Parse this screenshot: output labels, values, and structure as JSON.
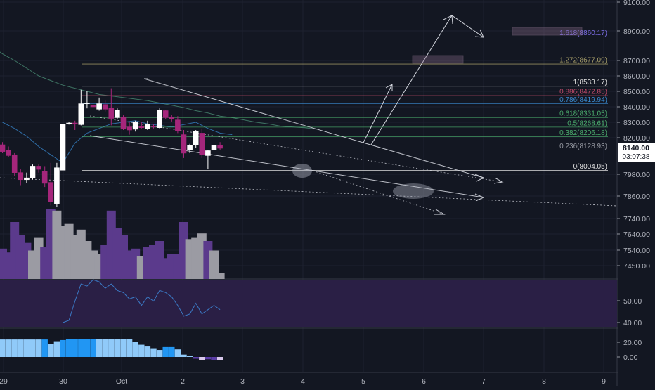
{
  "colors": {
    "background": "#131722",
    "grid": "#1e2230",
    "pane_separator": "#363a45",
    "axis_text": "#b2b5be",
    "candle_up": "#ffffff",
    "candle_down": "#a5267b",
    "wick": "#9aa0ad",
    "volume_up": "#9b9ba3",
    "volume_down": "#5b3a8c",
    "rsi_band": "#2a1f45",
    "rsi_line": "#3b7ac6",
    "hist_dark": "#2196f3",
    "hist_light": "#90caf9",
    "hist_neg_dark": "#5b3da8",
    "hist_neg_light": "#d8c8ec",
    "drawing": "#d1d4dc",
    "ma_green": "#3e7463",
    "ma_blue": "#2f6da6",
    "price_tag": "#ffffff"
  },
  "chart_data": [
    {
      "type": "candlestick",
      "title": "",
      "y_axis": {
        "ticks": [
          "9100.00",
          "8900.00",
          "8700.00",
          "8600.00",
          "8500.00",
          "8400.00",
          "8300.00",
          "8200.00",
          "7980.00",
          "7860.00",
          "7740.00",
          "7640.00",
          "7540.00",
          "7450.00"
        ]
      },
      "current_price": {
        "label": "8140.00",
        "countdown": "03:07:38",
        "value": 8140
      },
      "x_axis": {
        "ticks": [
          "29",
          "30",
          "Oct",
          "2",
          "3",
          "4",
          "5",
          "6",
          "7",
          "8",
          "9"
        ]
      },
      "candles": [
        {
          "o": 8160,
          "h": 8175,
          "l": 8110,
          "c": 8120
        },
        {
          "o": 8130,
          "h": 8150,
          "l": 8085,
          "c": 8095
        },
        {
          "o": 8100,
          "h": 8110,
          "l": 7970,
          "c": 7990
        },
        {
          "o": 7990,
          "h": 8010,
          "l": 7920,
          "c": 7950
        },
        {
          "o": 7950,
          "h": 7990,
          "l": 7930,
          "c": 7960
        },
        {
          "o": 7960,
          "h": 8040,
          "l": 7950,
          "c": 8030
        },
        {
          "o": 8030,
          "h": 8040,
          "l": 7990,
          "c": 8010
        },
        {
          "o": 8000,
          "h": 8030,
          "l": 7910,
          "c": 7930
        },
        {
          "o": 7935,
          "h": 8050,
          "l": 7810,
          "c": 7830
        },
        {
          "o": 7820,
          "h": 8050,
          "l": 7800,
          "c": 8020
        },
        {
          "o": 8005,
          "h": 8300,
          "l": 7990,
          "c": 8285
        },
        {
          "o": 8290,
          "h": 8300,
          "l": 8285,
          "c": 8295
        },
        {
          "o": 8295,
          "h": 8310,
          "l": 8250,
          "c": 8290
        },
        {
          "o": 8285,
          "h": 8510,
          "l": 8280,
          "c": 8420
        },
        {
          "o": 8420,
          "h": 8500,
          "l": 8390,
          "c": 8425
        },
        {
          "o": 8410,
          "h": 8450,
          "l": 8360,
          "c": 8400
        },
        {
          "o": 8385,
          "h": 8460,
          "l": 8375,
          "c": 8420
        },
        {
          "o": 8415,
          "h": 8440,
          "l": 8370,
          "c": 8385
        },
        {
          "o": 8390,
          "h": 8520,
          "l": 8280,
          "c": 8325
        },
        {
          "o": 8330,
          "h": 8390,
          "l": 8320,
          "c": 8380
        },
        {
          "o": 8335,
          "h": 8345,
          "l": 8250,
          "c": 8260
        },
        {
          "o": 8270,
          "h": 8300,
          "l": 8220,
          "c": 8250
        },
        {
          "o": 8255,
          "h": 8310,
          "l": 8240,
          "c": 8300
        },
        {
          "o": 8275,
          "h": 8300,
          "l": 8260,
          "c": 8265
        },
        {
          "o": 8260,
          "h": 8310,
          "l": 8250,
          "c": 8285
        },
        {
          "o": 8275,
          "h": 8290,
          "l": 8260,
          "c": 8270
        },
        {
          "o": 8265,
          "h": 8390,
          "l": 8260,
          "c": 8380
        },
        {
          "o": 8375,
          "h": 8380,
          "l": 8320,
          "c": 8330
        },
        {
          "o": 8335,
          "h": 8350,
          "l": 8305,
          "c": 8320
        },
        {
          "o": 8315,
          "h": 8340,
          "l": 8230,
          "c": 8245
        },
        {
          "o": 8220,
          "h": 8250,
          "l": 8080,
          "c": 8110
        },
        {
          "o": 8130,
          "h": 8165,
          "l": 8110,
          "c": 8155
        },
        {
          "o": 8160,
          "h": 8250,
          "l": 8140,
          "c": 8240
        },
        {
          "o": 8230,
          "h": 8260,
          "l": 8080,
          "c": 8100
        },
        {
          "o": 8095,
          "h": 8130,
          "l": 8010,
          "c": 8125
        },
        {
          "o": 8130,
          "h": 8165,
          "l": 8130,
          "c": 8155
        },
        {
          "o": 8155,
          "h": 8175,
          "l": 8130,
          "c": 8140
        }
      ],
      "moving_averages": [
        {
          "color_key": "ma_green",
          "values": [
            [
              -0.5,
              8760
            ],
            [
              0,
              8745
            ],
            [
              2,
              8700
            ],
            [
              4,
              8650
            ],
            [
              6,
              8600
            ],
            [
              8,
              8570
            ],
            [
              10,
              8540
            ],
            [
              12,
              8520
            ],
            [
              14,
              8500
            ],
            [
              16,
              8480
            ],
            [
              18,
              8470
            ],
            [
              20,
              8460
            ],
            [
              22,
              8450
            ],
            [
              24,
              8440
            ],
            [
              26,
              8425
            ],
            [
              28,
              8410
            ],
            [
              30,
              8395
            ],
            [
              32,
              8375
            ],
            [
              34,
              8360
            ],
            [
              36,
              8340
            ],
            [
              38,
              8330
            ],
            [
              40,
              8315
            ],
            [
              42,
              8300
            ],
            [
              44,
              8290
            ],
            [
              46,
              8275
            ],
            [
              48,
              8270
            ],
            [
              50,
              8265
            ],
            [
              52,
              8255
            ]
          ]
        },
        {
          "color_key": "ma_blue",
          "values": [
            [
              0,
              8300
            ],
            [
              2,
              8260
            ],
            [
              4,
              8210
            ],
            [
              6,
              8150
            ],
            [
              8,
              8100
            ],
            [
              10,
              8050
            ],
            [
              12,
              8170
            ],
            [
              14,
              8230
            ],
            [
              16,
              8260
            ],
            [
              18,
              8290
            ],
            [
              20,
              8300
            ],
            [
              22,
              8310
            ],
            [
              24,
              8290
            ],
            [
              26,
              8280
            ],
            [
              28,
              8270
            ],
            [
              30,
              8285
            ],
            [
              32,
              8300
            ],
            [
              34,
              8260
            ],
            [
              36,
              8230
            ],
            [
              38,
              8220
            ]
          ]
        }
      ],
      "fib_levels": [
        {
          "ratio": "1.618",
          "value": "8860.17",
          "color": "#7d6ee8"
        },
        {
          "ratio": "1.272",
          "value": "8677.09",
          "color": "#a89f6a"
        },
        {
          "ratio": "1",
          "value": "8533.17",
          "color": "#e0e0e0"
        },
        {
          "ratio": "0.886",
          "value": "8472.85",
          "color": "#c04a6a"
        },
        {
          "ratio": "0.786",
          "value": "8419.94",
          "color": "#3a8bd0"
        },
        {
          "ratio": "0.618",
          "value": "8331.05",
          "color": "#4caf6e"
        },
        {
          "ratio": "0.5",
          "value": "8268.61",
          "color": "#4caf6e"
        },
        {
          "ratio": "0.382",
          "value": "8206.18",
          "color": "#4caf6e"
        },
        {
          "ratio": "0.236",
          "value": "8128.93",
          "color": "#9598a1"
        },
        {
          "ratio": "0",
          "value": "8004.05",
          "color": "#e0e0e0"
        }
      ]
    },
    {
      "type": "bar",
      "name": "volume",
      "values": [
        16,
        14,
        30,
        23,
        19,
        15,
        22,
        17,
        37,
        36,
        28,
        29,
        23,
        26,
        20,
        15,
        13,
        18,
        36,
        27,
        23,
        15,
        16,
        12,
        17,
        18,
        20,
        11,
        13,
        13,
        30,
        21,
        22,
        24,
        20,
        15,
        3
      ],
      "directions": [
        "d",
        "d",
        "d",
        "d",
        "d",
        "u",
        "u",
        "d",
        "d",
        "u",
        "u",
        "u",
        "u",
        "u",
        "u",
        "u",
        "u",
        "d",
        "d",
        "d",
        "d",
        "d",
        "d",
        "u",
        "d",
        "d",
        "d",
        "d",
        "d",
        "d",
        "d",
        "u",
        "u",
        "u",
        "d",
        "u",
        "u"
      ]
    },
    {
      "type": "line",
      "name": "rsi",
      "y_axis": {
        "ticks": [
          "50.00",
          "40.00"
        ]
      },
      "values": [
        [
          10,
          40
        ],
        [
          11,
          41
        ],
        [
          12,
          50
        ],
        [
          13,
          58
        ],
        [
          14,
          57
        ],
        [
          15,
          60
        ],
        [
          16,
          59
        ],
        [
          17,
          56
        ],
        [
          18,
          58
        ],
        [
          19,
          55
        ],
        [
          20,
          54
        ],
        [
          21,
          51
        ],
        [
          22,
          52
        ],
        [
          23,
          48
        ],
        [
          24,
          52
        ],
        [
          25,
          50
        ],
        [
          26,
          55
        ],
        [
          27,
          54
        ],
        [
          28,
          52
        ],
        [
          29,
          48
        ],
        [
          30,
          43
        ],
        [
          31,
          44
        ],
        [
          32,
          49
        ],
        [
          33,
          44
        ],
        [
          34,
          46
        ],
        [
          35,
          48
        ],
        [
          36,
          46
        ]
      ]
    },
    {
      "type": "bar",
      "name": "histogram",
      "y_axis": {
        "ticks": [
          "20.00",
          "0.00"
        ]
      },
      "values": [
        30,
        30,
        30,
        30,
        30,
        30,
        30,
        30,
        22,
        27,
        29,
        31,
        31,
        31,
        31,
        31,
        31,
        31,
        31,
        31,
        31,
        31,
        26,
        21,
        18,
        15,
        12,
        17,
        17,
        13,
        4,
        2,
        -3,
        -6,
        -4,
        -6,
        -5
      ],
      "shades": [
        "l",
        "l",
        "l",
        "l",
        "l",
        "l",
        "l",
        "d",
        "l",
        "l",
        "d",
        "d",
        "d",
        "d",
        "d",
        "d",
        "l",
        "l",
        "l",
        "l",
        "l",
        "l",
        "l",
        "l",
        "l",
        "l",
        "l",
        "d",
        "d",
        "l",
        "l",
        "n",
        "n",
        "l",
        "n",
        "n",
        "l"
      ]
    }
  ]
}
